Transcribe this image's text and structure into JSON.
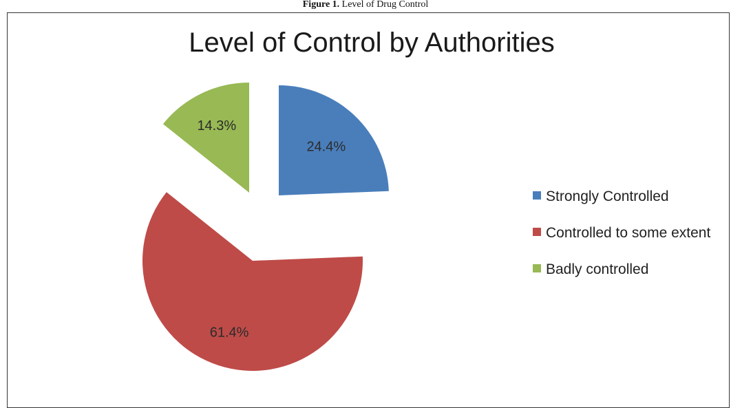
{
  "caption": {
    "prefix": "Figure 1.",
    "text": " Level of Drug Control"
  },
  "chart_data": {
    "type": "pie",
    "title": "Level of Control by Authorities",
    "exploded": true,
    "legend_position": "right",
    "slices": [
      {
        "name": "Strongly Controlled",
        "value": 24.4,
        "label": "24.4%",
        "color": "#4a7ebb"
      },
      {
        "name": "Controlled to some extent",
        "value": 61.4,
        "label": "61.4%",
        "color": "#be4b48"
      },
      {
        "name": "Badly controlled",
        "value": 14.3,
        "label": "14.3%",
        "color": "#98b954"
      }
    ]
  }
}
